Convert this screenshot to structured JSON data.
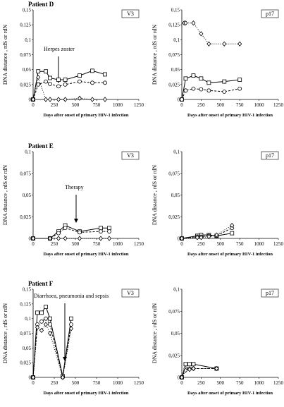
{
  "chart_data": [
    {
      "type": "line",
      "title": "Patient D",
      "label": "V3",
      "annotation": "Herpes zoster",
      "xlabel": "Days after onset of primary HIV-1 infection",
      "ylabel": "DNA distance , rdS or rdN",
      "xlim": [
        0,
        1250
      ],
      "xticks": [
        0,
        250,
        500,
        750,
        1000,
        1250
      ],
      "ylim": [
        0,
        0.15
      ],
      "yticks": [
        0,
        {
          "value": 0.025,
          "label": "0,025"
        },
        {
          "value": 0.05,
          "label": "0,05"
        },
        {
          "value": 0.075,
          "label": "0,075"
        },
        {
          "value": 0.1,
          "label": "0,1"
        },
        {
          "value": 0.125,
          "label": "0,125"
        },
        {
          "value": 0.15,
          "label": "0,15"
        }
      ],
      "series": [
        {
          "marker": "square",
          "line_style": "solid",
          "color": "#000000",
          "x": [
            0,
            60,
            150,
            200,
            300,
            380,
            550,
            700,
            850
          ],
          "values": [
            0,
            0.047,
            0.047,
            0.036,
            0.033,
            0.033,
            0.04,
            0.048,
            0.042
          ]
        },
        {
          "marker": "circle",
          "line_style": "dashed",
          "color": "#000000",
          "x": [
            0,
            60,
            150,
            200,
            300,
            380,
            550,
            700,
            850
          ],
          "values": [
            0,
            0.025,
            0.03,
            0.026,
            0.022,
            0.025,
            0.03,
            0.028,
            0.028
          ]
        },
        {
          "marker": "diamond",
          "line_style": "dotted",
          "color": "#000000",
          "x": [
            0,
            60,
            150,
            200,
            300,
            380,
            550,
            700,
            850
          ],
          "values": [
            0,
            0.037,
            0,
            0,
            0,
            0,
            0.002,
            0,
            0
          ]
        }
      ]
    },
    {
      "type": "line",
      "label": "p17",
      "xlabel": "Days after onset of primary HIV-1 infection",
      "ylabel": "DNA distance , rdS or rdN",
      "xlim": [
        0,
        1250
      ],
      "xticks": [
        0,
        250,
        500,
        750,
        1000,
        1250
      ],
      "ylim": [
        0,
        0.15
      ],
      "yticks": [
        0,
        {
          "value": 0.025,
          "label": "0,025"
        },
        {
          "value": 0.05,
          "label": "0,05"
        },
        {
          "value": 0.075,
          "label": "0,075"
        },
        {
          "value": 0.1,
          "label": "0,1"
        },
        {
          "value": 0.125,
          "label": "0,125"
        },
        {
          "value": 0.15,
          "label": "0,15"
        }
      ],
      "series": [
        {
          "marker": "square",
          "line_style": "solid",
          "color": "#000000",
          "x": [
            0,
            50,
            150,
            250,
            350,
            550,
            750
          ],
          "values": [
            0,
            0.035,
            0.04,
            0.035,
            0.028,
            0.03,
            0.033
          ]
        },
        {
          "marker": "circle",
          "line_style": "dashed",
          "color": "#000000",
          "x": [
            0,
            50,
            150,
            250,
            350,
            550,
            750
          ],
          "values": [
            0,
            0.015,
            0.018,
            0.017,
            0.015,
            0.013,
            0.018
          ]
        },
        {
          "marker": "diamond",
          "line_style": "dotted",
          "color": "#000000",
          "x": [
            30,
            50,
            150,
            250,
            350,
            550,
            750
          ],
          "values": [
            0.128,
            0.128,
            0.128,
            0.11,
            0.093,
            0.093,
            0.093
          ]
        }
      ]
    },
    {
      "type": "line",
      "title": "Patient E",
      "label": "V3",
      "annotation": "Therapy",
      "xlabel": "Days after onset of primary HIV-1 infection",
      "ylabel": "DNA distance , rdS or rdN",
      "xlim": [
        0,
        1250
      ],
      "xticks": [
        0,
        250,
        500,
        750,
        1000,
        1250
      ],
      "ylim": [
        0,
        0.1
      ],
      "yticks": [
        0,
        {
          "value": 0.025,
          "label": "0,025"
        },
        {
          "value": 0.05,
          "label": "0,05"
        },
        {
          "value": 0.075,
          "label": "0,075"
        },
        {
          "value": 0.1,
          "label": "0,1"
        }
      ],
      "series": [
        {
          "marker": "square",
          "line_style": "solid",
          "color": "#000000",
          "x": [
            0,
            200,
            300,
            380,
            550,
            800,
            900
          ],
          "values": [
            0,
            0,
            0.008,
            0.015,
            0.008,
            0.012,
            0.012
          ]
        },
        {
          "marker": "circle",
          "line_style": "dashed",
          "color": "#000000",
          "x": [
            0,
            200,
            300,
            380,
            550,
            800,
            900
          ],
          "values": [
            0,
            0,
            0.006,
            0.012,
            0.007,
            0.008,
            0.008
          ]
        },
        {
          "marker": "diamond",
          "line_style": "dotted",
          "color": "#000000",
          "x": [
            0,
            200,
            300,
            380,
            550,
            800,
            900
          ],
          "values": [
            0,
            0,
            0,
            0,
            0,
            0,
            0
          ]
        }
      ]
    },
    {
      "type": "line",
      "label": "p17",
      "xlabel": "Days after onset of primary HIV-1 infection",
      "ylabel": "DNA distance , rdS or rdN",
      "xlim": [
        0,
        1250
      ],
      "xticks": [
        0,
        250,
        500,
        750,
        1000,
        1250
      ],
      "ylim": [
        0,
        0.1
      ],
      "yticks": [
        0,
        {
          "value": 0.025,
          "label": "0,025"
        },
        {
          "value": 0.05,
          "label": "0,05"
        },
        {
          "value": 0.075,
          "label": "0,075"
        },
        {
          "value": 0.1,
          "label": "0,1"
        }
      ],
      "series": [
        {
          "marker": "square",
          "line_style": "solid",
          "color": "#000000",
          "x": [
            0,
            200,
            250,
            350,
            450,
            650
          ],
          "values": [
            0,
            0.003,
            0.004,
            0.004,
            0.003,
            0.006
          ]
        },
        {
          "marker": "circle",
          "line_style": "dashed",
          "color": "#000000",
          "x": [
            0,
            200,
            250,
            350,
            450,
            650
          ],
          "values": [
            0,
            0.002,
            0.002,
            0.003,
            0.003,
            0.012
          ]
        },
        {
          "marker": "diamond",
          "line_style": "dotted",
          "color": "#000000",
          "x": [
            0,
            200,
            250,
            350,
            450,
            650
          ],
          "values": [
            0,
            0.001,
            0.001,
            0.002,
            0.004,
            0.015
          ]
        }
      ]
    },
    {
      "type": "line",
      "title": "Patient F",
      "label": "V3",
      "annotation": "Diarrhoea, pneumonia and sepsis",
      "xlabel": "Days after onset of primary HIV-1 infection",
      "ylabel": "DNA distance , rdS or rdN",
      "xlim": [
        0,
        1250
      ],
      "xticks": [
        0,
        250,
        500,
        750,
        1000,
        1250
      ],
      "ylim": [
        0,
        0.15
      ],
      "yticks": [
        0,
        {
          "value": 0.025,
          "label": "0,025"
        },
        {
          "value": 0.05,
          "label": "0,05"
        },
        {
          "value": 0.075,
          "label": "0,075"
        },
        {
          "value": 0.1,
          "label": "0,1"
        },
        {
          "value": 0.125,
          "label": "0,125"
        },
        {
          "value": 0.15,
          "label": "0,15"
        }
      ],
      "series": [
        {
          "marker": "square",
          "line_style": "solid",
          "color": "#000000",
          "x": [
            0,
            50,
            100,
            150,
            200,
            350,
            450
          ],
          "values": [
            0,
            0.11,
            0.11,
            0.12,
            0.1,
            0.002,
            0.1
          ]
        },
        {
          "marker": "circle",
          "line_style": "dashed",
          "color": "#000000",
          "x": [
            0,
            50,
            100,
            150,
            200,
            350,
            450
          ],
          "values": [
            0,
            0.09,
            0.095,
            0.1,
            0.09,
            0,
            0.09
          ]
        },
        {
          "marker": "diamond",
          "line_style": "dotted",
          "color": "#000000",
          "x": [
            0,
            50,
            100,
            150,
            200,
            350,
            450
          ],
          "values": [
            0,
            0.085,
            0.08,
            0.09,
            0.075,
            0,
            0.083
          ]
        }
      ]
    },
    {
      "type": "line",
      "label": "p17",
      "xlabel": "Days after onset of primary HIV-1 infection",
      "ylabel": "DNA distance , rdS or rdN",
      "xlim": [
        0,
        1250
      ],
      "xticks": [
        0,
        250,
        500,
        750,
        1000,
        1250
      ],
      "ylim": [
        0,
        0.1
      ],
      "yticks": [
        0,
        {
          "value": 0.025,
          "label": "0,025"
        },
        {
          "value": 0.05,
          "label": "0,05"
        },
        {
          "value": 0.075,
          "label": "0,075"
        },
        {
          "value": 0.1,
          "label": "0,1"
        }
      ],
      "series": [
        {
          "marker": "square",
          "line_style": "solid",
          "color": "#000000",
          "x": [
            0,
            50,
            100,
            150,
            450
          ],
          "values": [
            0,
            0.015,
            0.015,
            0.015,
            0.01
          ]
        },
        {
          "marker": "circle",
          "line_style": "dashed",
          "color": "#000000",
          "x": [
            0,
            50,
            100,
            150,
            450
          ],
          "values": [
            0,
            0.01,
            0.01,
            0.01,
            0.01
          ]
        },
        {
          "marker": "diamond",
          "line_style": "dotted",
          "color": "#000000",
          "x": [
            0,
            50,
            100,
            150,
            450
          ],
          "values": [
            0,
            0.008,
            0.009,
            0.01,
            0.01
          ]
        }
      ]
    }
  ]
}
